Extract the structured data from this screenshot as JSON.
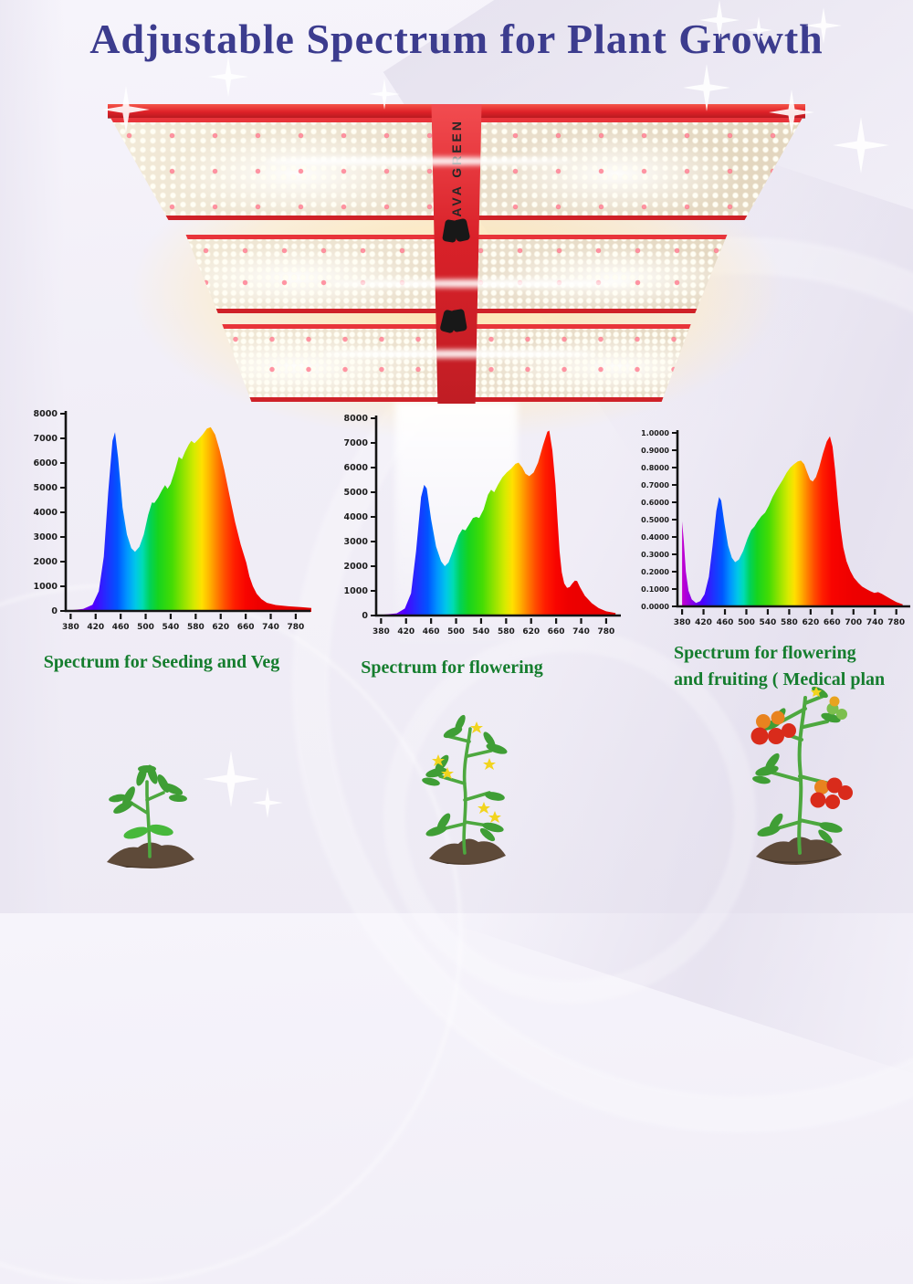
{
  "title": "Adjustable Spectrum for Plant Growth",
  "brand": "BAVA GREEN",
  "colors": {
    "title_blue": "#3c3c8e",
    "caption_green": "#157d2e",
    "fixture_red": "#e02229",
    "background_lavender": "#f1eef7",
    "glow_warm": "#ffe4a8"
  },
  "chart_data": [
    {
      "type": "area",
      "id": "seeding-veg-spectrum",
      "caption_lines": [
        "Spectrum for Seeding and Veg"
      ],
      "xlabel": "",
      "ylabel": "",
      "ylim": [
        0,
        8000
      ],
      "y_ticks": [
        "8000",
        "7000",
        "6000",
        "5000",
        "4000",
        "3000",
        "2000",
        "1000",
        "0"
      ],
      "x_ticks": [
        "380",
        "420",
        "460",
        "500",
        "540",
        "580",
        "620",
        "660",
        "740",
        "780"
      ],
      "x_tick_values": [
        380,
        420,
        460,
        500,
        540,
        580,
        620,
        660,
        740,
        780
      ],
      "points": [
        [
          380,
          30
        ],
        [
          400,
          80
        ],
        [
          415,
          250
        ],
        [
          425,
          800
        ],
        [
          433,
          2200
        ],
        [
          440,
          4800
        ],
        [
          447,
          6900
        ],
        [
          451,
          7250
        ],
        [
          456,
          6200
        ],
        [
          463,
          4200
        ],
        [
          470,
          3100
        ],
        [
          477,
          2550
        ],
        [
          483,
          2400
        ],
        [
          490,
          2600
        ],
        [
          497,
          3100
        ],
        [
          504,
          3900
        ],
        [
          510,
          4400
        ],
        [
          514,
          4380
        ],
        [
          520,
          4600
        ],
        [
          526,
          4900
        ],
        [
          531,
          5100
        ],
        [
          535,
          4950
        ],
        [
          540,
          5150
        ],
        [
          547,
          5700
        ],
        [
          553,
          6250
        ],
        [
          558,
          6150
        ],
        [
          563,
          6450
        ],
        [
          569,
          6750
        ],
        [
          573,
          6900
        ],
        [
          578,
          6800
        ],
        [
          584,
          6950
        ],
        [
          591,
          7150
        ],
        [
          598,
          7400
        ],
        [
          604,
          7450
        ],
        [
          611,
          7150
        ],
        [
          618,
          6550
        ],
        [
          626,
          5700
        ],
        [
          634,
          4700
        ],
        [
          643,
          3600
        ],
        [
          652,
          2700
        ],
        [
          662,
          1950
        ],
        [
          672,
          1400
        ],
        [
          683,
          1000
        ],
        [
          695,
          700
        ],
        [
          710,
          480
        ],
        [
          728,
          330
        ],
        [
          748,
          240
        ],
        [
          768,
          190
        ],
        [
          790,
          150
        ],
        [
          805,
          120
        ]
      ]
    },
    {
      "type": "area",
      "id": "flowering-spectrum",
      "caption_lines": [
        "Spectrum for flowering"
      ],
      "xlabel": "",
      "ylabel": "",
      "ylim": [
        0,
        8000
      ],
      "y_ticks": [
        "8000",
        "7000",
        "6000",
        "5000",
        "4000",
        "3000",
        "2000",
        "1000",
        "0"
      ],
      "x_ticks": [
        "380",
        "420",
        "460",
        "500",
        "540",
        "580",
        "620",
        "660",
        "740",
        "780"
      ],
      "x_tick_values": [
        380,
        420,
        460,
        500,
        540,
        580,
        620,
        660,
        740,
        780
      ],
      "points": [
        [
          380,
          30
        ],
        [
          405,
          90
        ],
        [
          418,
          280
        ],
        [
          428,
          900
        ],
        [
          436,
          2600
        ],
        [
          444,
          4800
        ],
        [
          449,
          5300
        ],
        [
          453,
          5150
        ],
        [
          460,
          3900
        ],
        [
          468,
          2800
        ],
        [
          476,
          2200
        ],
        [
          482,
          2000
        ],
        [
          488,
          2150
        ],
        [
          496,
          2700
        ],
        [
          504,
          3250
        ],
        [
          510,
          3500
        ],
        [
          515,
          3450
        ],
        [
          521,
          3700
        ],
        [
          527,
          3950
        ],
        [
          532,
          4000
        ],
        [
          537,
          3950
        ],
        [
          544,
          4300
        ],
        [
          551,
          4900
        ],
        [
          556,
          5100
        ],
        [
          561,
          5000
        ],
        [
          567,
          5300
        ],
        [
          574,
          5600
        ],
        [
          581,
          5800
        ],
        [
          588,
          5950
        ],
        [
          595,
          6150
        ],
        [
          600,
          6200
        ],
        [
          606,
          6000
        ],
        [
          611,
          5750
        ],
        [
          617,
          5650
        ],
        [
          624,
          5800
        ],
        [
          631,
          6200
        ],
        [
          639,
          6900
        ],
        [
          646,
          7450
        ],
        [
          649,
          7500
        ],
        [
          654,
          6700
        ],
        [
          659,
          5300
        ],
        [
          665,
          3800
        ],
        [
          671,
          2600
        ],
        [
          678,
          1750
        ],
        [
          686,
          1300
        ],
        [
          695,
          1120
        ],
        [
          703,
          1150
        ],
        [
          712,
          1300
        ],
        [
          720,
          1420
        ],
        [
          727,
          1400
        ],
        [
          736,
          1150
        ],
        [
          746,
          800
        ],
        [
          757,
          500
        ],
        [
          768,
          300
        ],
        [
          780,
          170
        ],
        [
          795,
          100
        ]
      ]
    },
    {
      "type": "area",
      "id": "flowering-fruiting-spectrum",
      "caption_lines": [
        "Spectrum for flowering",
        "and fruiting ( Medical plan"
      ],
      "xlabel": "",
      "ylabel": "",
      "ylim": [
        0,
        1.0
      ],
      "y_ticks": [
        "1.0000",
        "0.9000",
        "0.8000",
        "0.7000",
        "0.6000",
        "0.5000",
        "0.4000",
        "0.3000",
        "0.2000",
        "0.1000",
        "0.0000"
      ],
      "x_ticks": [
        "380",
        "420",
        "460",
        "500",
        "540",
        "580",
        "620",
        "660",
        "700",
        "740",
        "780"
      ],
      "x_tick_values": [
        380,
        420,
        460,
        500,
        540,
        580,
        620,
        660,
        700,
        740,
        780
      ],
      "points": [
        [
          380,
          0.49
        ],
        [
          383,
          0.38
        ],
        [
          387,
          0.2
        ],
        [
          392,
          0.09
        ],
        [
          398,
          0.04
        ],
        [
          406,
          0.02
        ],
        [
          414,
          0.03
        ],
        [
          422,
          0.07
        ],
        [
          430,
          0.17
        ],
        [
          437,
          0.35
        ],
        [
          444,
          0.55
        ],
        [
          449,
          0.63
        ],
        [
          453,
          0.61
        ],
        [
          459,
          0.48
        ],
        [
          466,
          0.35
        ],
        [
          473,
          0.28
        ],
        [
          479,
          0.255
        ],
        [
          486,
          0.27
        ],
        [
          494,
          0.32
        ],
        [
          502,
          0.39
        ],
        [
          509,
          0.44
        ],
        [
          515,
          0.46
        ],
        [
          521,
          0.49
        ],
        [
          528,
          0.52
        ],
        [
          535,
          0.54
        ],
        [
          542,
          0.58
        ],
        [
          549,
          0.63
        ],
        [
          556,
          0.67
        ],
        [
          562,
          0.7
        ],
        [
          568,
          0.73
        ],
        [
          575,
          0.77
        ],
        [
          582,
          0.8
        ],
        [
          589,
          0.82
        ],
        [
          596,
          0.835
        ],
        [
          602,
          0.84
        ],
        [
          608,
          0.82
        ],
        [
          614,
          0.77
        ],
        [
          619,
          0.73
        ],
        [
          624,
          0.72
        ],
        [
          630,
          0.745
        ],
        [
          636,
          0.8
        ],
        [
          643,
          0.88
        ],
        [
          650,
          0.95
        ],
        [
          656,
          0.98
        ],
        [
          661,
          0.92
        ],
        [
          666,
          0.78
        ],
        [
          671,
          0.6
        ],
        [
          676,
          0.45
        ],
        [
          681,
          0.34
        ],
        [
          687,
          0.26
        ],
        [
          694,
          0.205
        ],
        [
          701,
          0.165
        ],
        [
          709,
          0.135
        ],
        [
          716,
          0.115
        ],
        [
          724,
          0.1
        ],
        [
          731,
          0.088
        ],
        [
          739,
          0.078
        ],
        [
          746,
          0.082
        ],
        [
          753,
          0.072
        ],
        [
          761,
          0.058
        ],
        [
          770,
          0.042
        ],
        [
          780,
          0.025
        ],
        [
          792,
          0.012
        ]
      ]
    }
  ],
  "plants": [
    {
      "icon": "seedling-plant-icon"
    },
    {
      "icon": "flowering-plant-icon"
    },
    {
      "icon": "fruiting-plant-icon"
    }
  ]
}
